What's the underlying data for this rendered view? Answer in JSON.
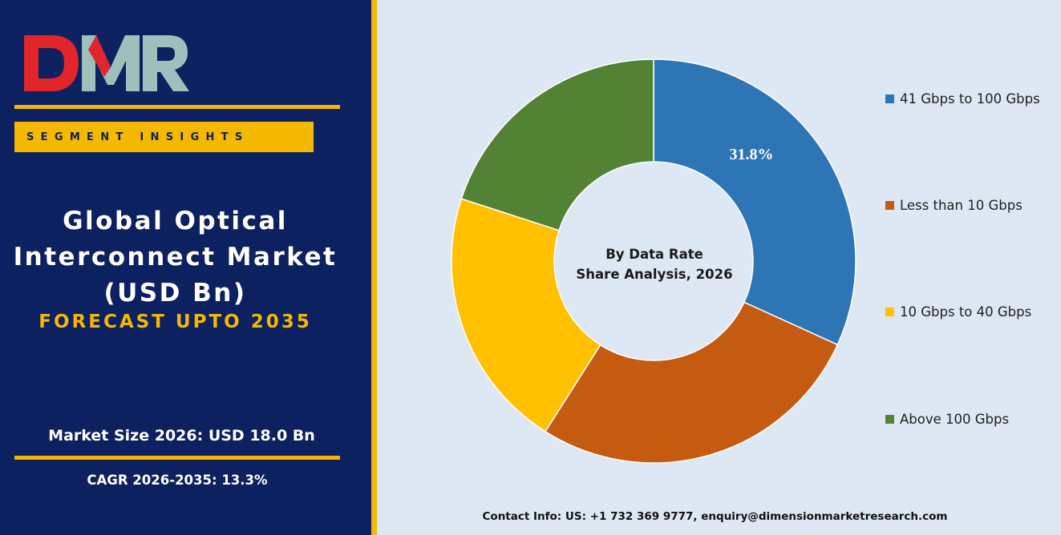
{
  "brand": {
    "logo_text": "DMR",
    "colors": {
      "navy": "#0d2060",
      "gold": "#f5b800",
      "logo_red": "#e0262a",
      "logo_teal": "#9ec0bc"
    }
  },
  "left_panel": {
    "segment_label": "SEGMENT INSIGHTS",
    "title_lines": [
      "Global Optical",
      "Interconnect Market",
      "(USD Bn)"
    ],
    "forecast": "FORECAST UPTO 2035",
    "market_size": "Market Size 2026: USD 18.0 Bn",
    "cagr": "CAGR 2026-2035: 13.3%"
  },
  "chart_data": {
    "type": "pie",
    "title": "By Data Rate Share Analysis, 2026",
    "center_lines": [
      "By Data Rate",
      "Share Analysis, 2026"
    ],
    "donut": true,
    "legend_position": "right",
    "slices": [
      {
        "label": "41 Gbps to 100 Gbps",
        "value": 31.8,
        "color": "#2e75b6",
        "value_label": "31.8%"
      },
      {
        "label": "Less than 10 Gbps",
        "value": 27.2,
        "color": "#c55a11",
        "value_label": ""
      },
      {
        "label": "10 Gbps to 40 Gbps",
        "value": 21.0,
        "color": "#ffc000",
        "value_label": ""
      },
      {
        "label": "Above 100 Gbps",
        "value": 20.0,
        "color": "#548235",
        "value_label": ""
      }
    ]
  },
  "footer": {
    "contact": "Contact Info: US: +1 732 369 9777, enquiry@dimensionmarketresearch.com"
  }
}
